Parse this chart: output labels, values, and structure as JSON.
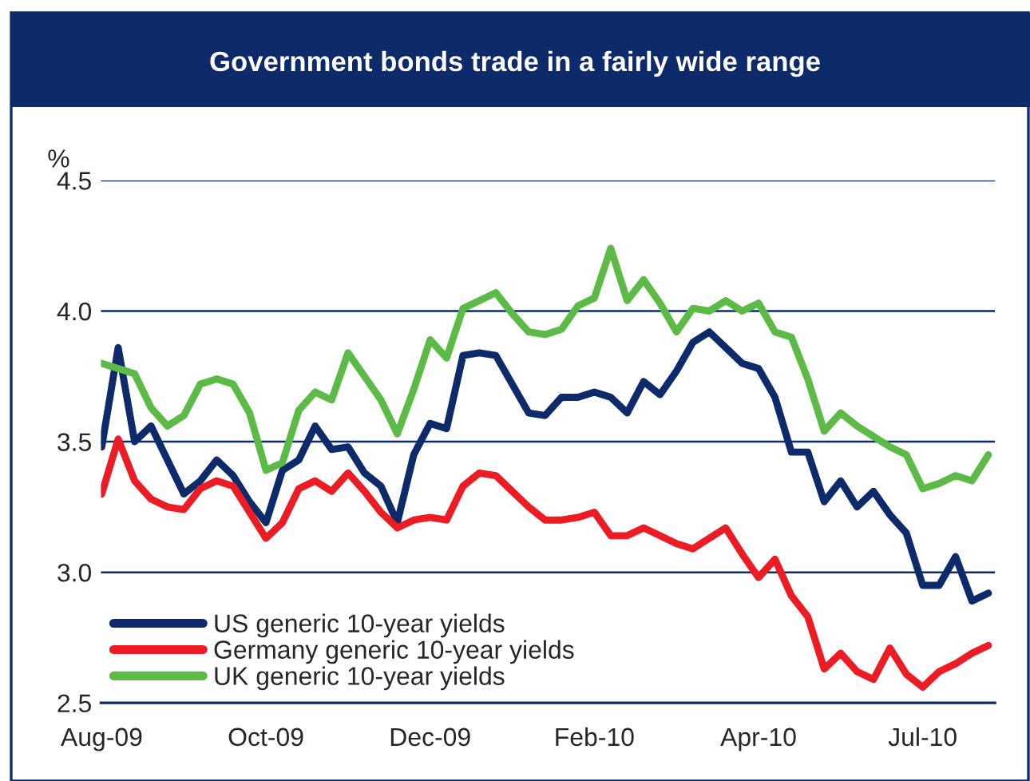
{
  "chart_data": {
    "type": "line",
    "title": "Government bonds trade in a fairly wide range",
    "ylabel": "%",
    "categories": [
      "Aug-09",
      null,
      null,
      null,
      null,
      null,
      null,
      null,
      null,
      null,
      "Oct-09",
      null,
      null,
      null,
      null,
      null,
      null,
      null,
      null,
      null,
      "Dec-09",
      null,
      null,
      null,
      null,
      null,
      null,
      null,
      null,
      null,
      "Feb-10",
      null,
      null,
      null,
      null,
      null,
      null,
      null,
      null,
      null,
      "Apr-10",
      null,
      null,
      null,
      null,
      null,
      null,
      null,
      null,
      null,
      "Jul-10",
      null,
      null,
      null,
      null
    ],
    "ylim": [
      2.5,
      4.5
    ],
    "yticks": [
      2.5,
      {
        "value": 3,
        "label": "3.0"
      },
      3.5,
      {
        "value": 4,
        "label": "4.0"
      },
      4.5
    ],
    "grid": "y",
    "legend": "bottom left",
    "marker": "none",
    "line_style": "solid",
    "series": [
      {
        "name": "US generic 10-year yields",
        "color": "#0d2a6b",
        "values": [
          3.48,
          3.86,
          3.5,
          3.56,
          3.43,
          3.3,
          3.35,
          3.43,
          3.37,
          3.27,
          3.19,
          3.39,
          3.43,
          3.56,
          3.47,
          3.48,
          3.38,
          3.33,
          3.19,
          3.45,
          3.57,
          3.55,
          3.83,
          3.84,
          3.83,
          3.72,
          3.61,
          3.6,
          3.67,
          3.67,
          3.69,
          3.67,
          3.61,
          3.73,
          3.68,
          3.77,
          3.88,
          3.92,
          3.86,
          3.8,
          3.78,
          3.67,
          3.46,
          3.46,
          3.27,
          3.35,
          3.25,
          3.31,
          3.22,
          3.15,
          2.95,
          2.95,
          3.06,
          2.89,
          2.92
        ]
      },
      {
        "name": "Germany generic 10-year yields",
        "color": "#ed1c24",
        "values": [
          3.3,
          3.51,
          3.35,
          3.28,
          3.25,
          3.24,
          3.32,
          3.35,
          3.33,
          3.23,
          3.13,
          3.19,
          3.32,
          3.35,
          3.31,
          3.38,
          3.31,
          3.23,
          3.17,
          3.2,
          3.21,
          3.2,
          3.33,
          3.38,
          3.37,
          3.31,
          3.25,
          3.2,
          3.2,
          3.21,
          3.23,
          3.14,
          3.14,
          3.17,
          3.14,
          3.11,
          3.09,
          3.13,
          3.17,
          3.07,
          2.98,
          3.05,
          2.91,
          2.83,
          2.63,
          2.69,
          2.62,
          2.59,
          2.71,
          2.61,
          2.56,
          2.62,
          2.65,
          2.69,
          2.72
        ]
      },
      {
        "name": "UK generic 10-year yields",
        "color": "#5bbb46",
        "values": [
          3.8,
          3.78,
          3.76,
          3.63,
          3.56,
          3.6,
          3.72,
          3.74,
          3.72,
          3.61,
          3.39,
          3.42,
          3.62,
          3.69,
          3.66,
          3.84,
          3.75,
          3.66,
          3.53,
          3.7,
          3.89,
          3.82,
          4.01,
          4.04,
          4.07,
          3.99,
          3.92,
          3.91,
          3.93,
          4.02,
          4.05,
          4.24,
          4.04,
          4.12,
          4.03,
          3.92,
          4.01,
          4.0,
          4.04,
          4.0,
          4.03,
          3.92,
          3.9,
          3.74,
          3.54,
          3.61,
          3.56,
          3.52,
          3.48,
          3.45,
          3.32,
          3.34,
          3.37,
          3.35,
          3.45
        ]
      }
    ]
  }
}
